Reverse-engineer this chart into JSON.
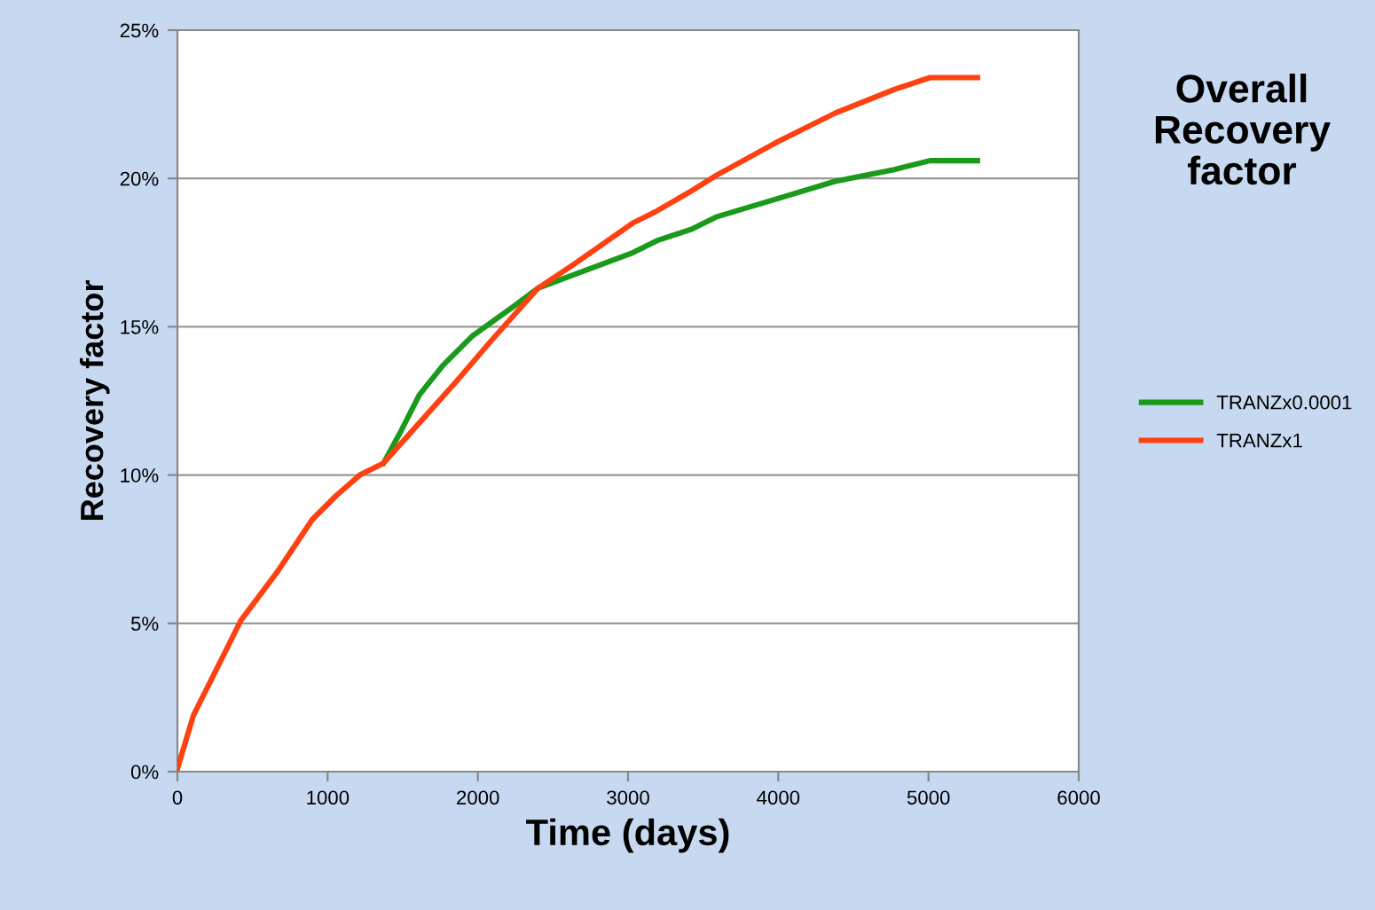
{
  "chart_data": {
    "type": "line",
    "title": "Overall Recovery factor",
    "xlabel": "Time (days)",
    "ylabel": "Recovery factor",
    "xlim": [
      0,
      6000
    ],
    "xticks": [
      0,
      1000,
      2000,
      3000,
      4000,
      5000,
      6000
    ],
    "ylim": [
      0,
      25
    ],
    "yticks": [
      {
        "value": 0,
        "label": "0%"
      },
      {
        "value": 5,
        "label": "5%"
      },
      {
        "value": 10,
        "label": "10%"
      },
      {
        "value": 15,
        "label": "15%"
      },
      {
        "value": 20,
        "label": "20%"
      },
      {
        "value": 25,
        "label": "25%"
      }
    ],
    "grid": "y",
    "legend": "right",
    "marker": "none",
    "line_style": "solid",
    "series": [
      {
        "name": "TRANZx0.0001",
        "color": "#1a9a1a",
        "x": [
          1372,
          1490,
          1610,
          1768,
          1966,
          2242,
          2400,
          2716,
          3033,
          3191,
          3428,
          3586,
          3982,
          4377,
          4772,
          5010,
          5326
        ],
        "values": [
          10.4,
          11.5,
          12.7,
          13.7,
          14.7,
          15.7,
          16.3,
          16.9,
          17.5,
          17.9,
          18.3,
          18.7,
          19.3,
          19.9,
          20.3,
          20.6,
          20.6
        ]
      },
      {
        "name": "TRANZx1",
        "color": "#ff4010",
        "x": [
          0,
          107,
          423,
          660,
          898,
          1056,
          1214,
          1372,
          1530,
          1847,
          2084,
          2400,
          2637,
          3033,
          3191,
          3428,
          3586,
          3982,
          4377,
          4772,
          5010,
          5326
        ],
        "values": [
          0.1,
          1.9,
          5.1,
          6.7,
          8.5,
          9.3,
          10.0,
          10.4,
          11.3,
          13.1,
          14.5,
          16.3,
          17.1,
          18.5,
          18.9,
          19.6,
          20.1,
          21.2,
          22.2,
          23.0,
          23.4,
          23.4
        ]
      }
    ]
  }
}
